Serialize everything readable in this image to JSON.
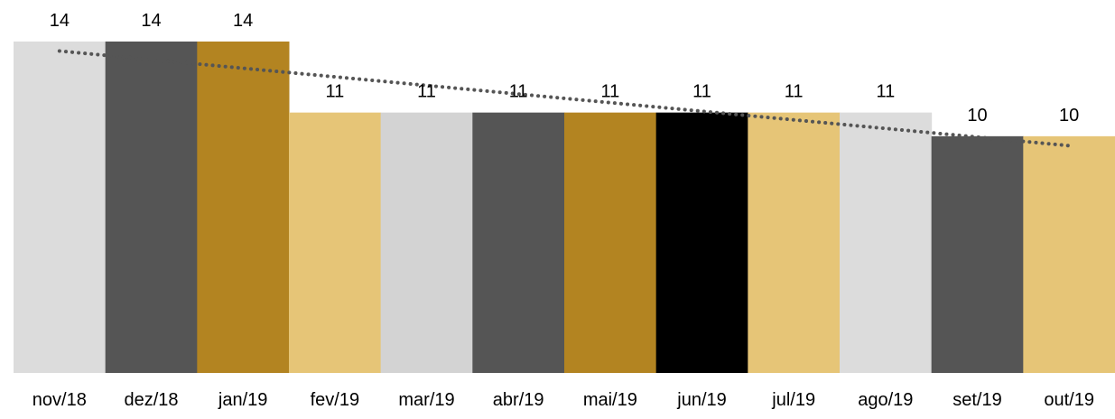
{
  "chart_data": {
    "type": "bar",
    "categories": [
      "nov/18",
      "dez/18",
      "jan/19",
      "fev/19",
      "mar/19",
      "abr/19",
      "mai/19",
      "jun/19",
      "jul/19",
      "ago/19",
      "set/19",
      "out/19"
    ],
    "values": [
      14,
      14,
      14,
      11,
      11,
      11,
      11,
      11,
      11,
      11,
      10,
      10
    ],
    "data_labels": [
      "14",
      "14",
      "14",
      "11",
      "11",
      "11",
      "11",
      "11",
      "11",
      "11",
      "10",
      "10"
    ],
    "bar_colors": [
      "#dcdcdc",
      "#555555",
      "#b38421",
      "#e6c577",
      "#d3d3d3",
      "#555555",
      "#b38421",
      "#000000",
      "#e6c577",
      "#dcdcdc",
      "#555555",
      "#e6c577"
    ],
    "trendline": {
      "style": "dotted",
      "color": "#555555",
      "start_value": 13.6,
      "end_value": 9.6
    },
    "title": "",
    "xlabel": "",
    "ylabel": "",
    "ylim": [
      0,
      14
    ],
    "grid": false,
    "legend": "none"
  }
}
